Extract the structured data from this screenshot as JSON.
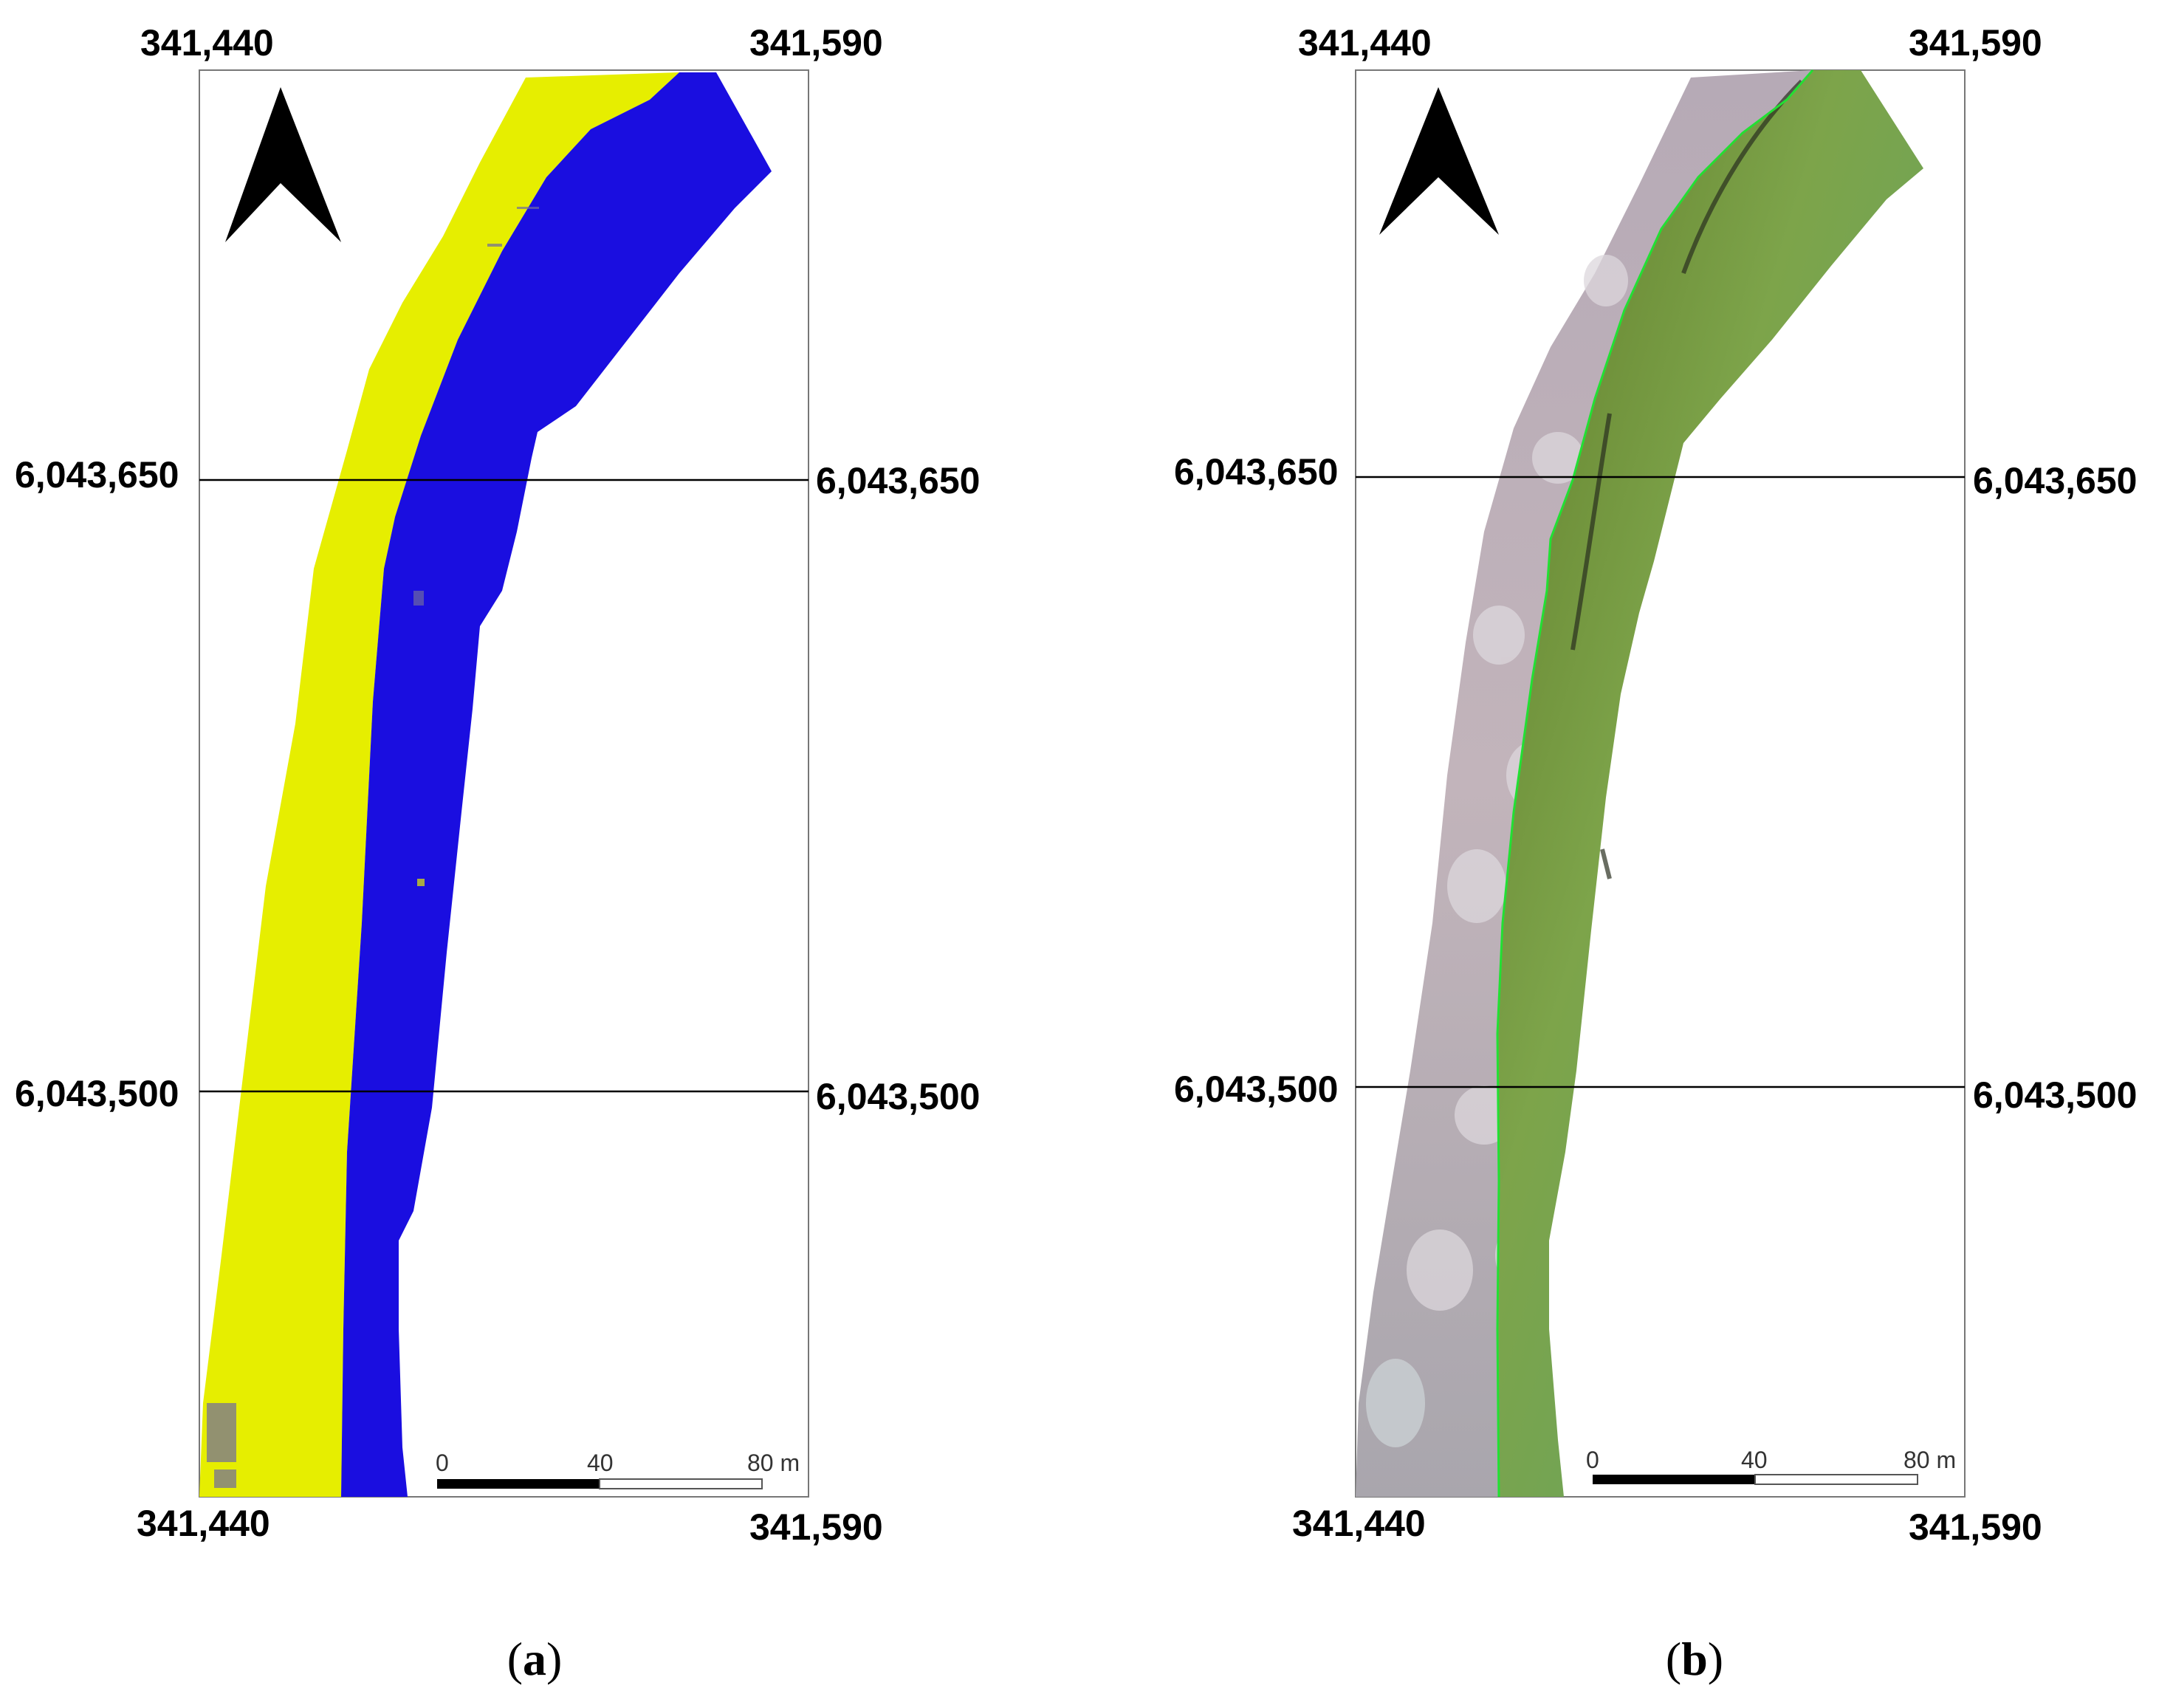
{
  "panels": [
    {
      "id": "a",
      "caption_open": "(",
      "caption_letter": "a",
      "caption_close": ")",
      "x_top_left": "341,440",
      "x_top_right": "341,590",
      "x_bottom_left": "341,440",
      "x_bottom_right": "341,590",
      "y_upper_left": "6,043,650",
      "y_upper_right": "6,043,650",
      "y_lower_left": "6,043,500",
      "y_lower_right": "6,043,500",
      "scale": {
        "t0": "0",
        "t1": "40",
        "t2": "80 m"
      },
      "colors": {
        "land": "#e6ee00",
        "water": "#1a0ee0"
      },
      "north_arrow": "north-arrow-icon"
    },
    {
      "id": "b",
      "caption_open": "(",
      "caption_letter": "b",
      "caption_close": ")",
      "x_top_left": "341,440",
      "x_top_right": "341,590",
      "x_bottom_left": "341,440",
      "x_bottom_right": "341,590",
      "y_upper_left": "6,043,650",
      "y_upper_right": "6,043,650",
      "y_lower_left": "6,043,500",
      "y_lower_right": "6,043,500",
      "scale": {
        "t0": "0",
        "t1": "40",
        "t2": "80 m"
      },
      "colors": {
        "land": "#b8aeb4",
        "water": "#6f8f3a",
        "shoreline": "#22e033"
      },
      "north_arrow": "north-arrow-icon"
    }
  ]
}
